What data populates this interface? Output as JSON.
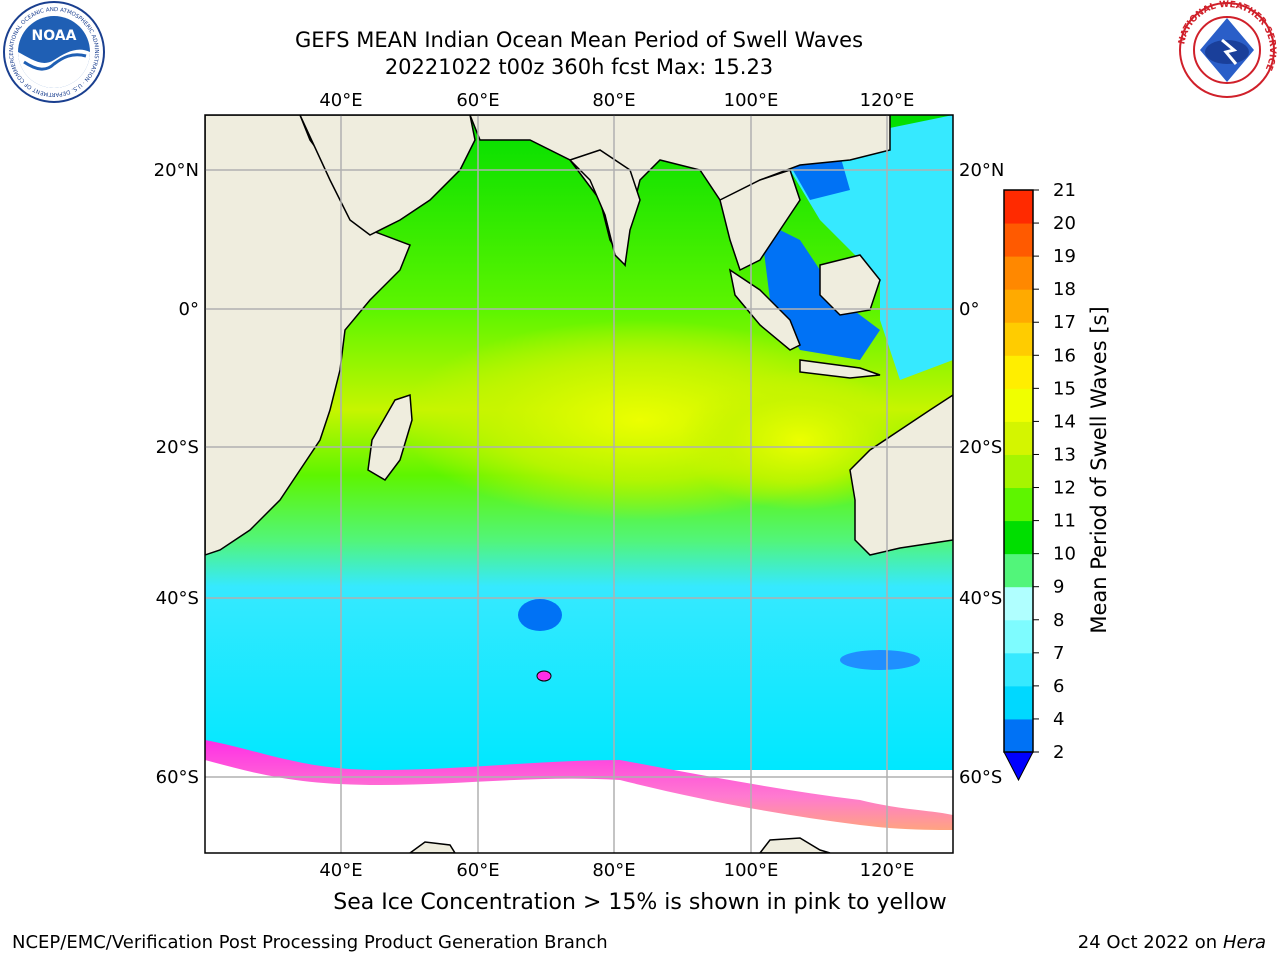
{
  "title": {
    "line1": "GEFS MEAN Indian Ocean Mean Period of Swell Waves",
    "line2": "20221022 t00z 360h fcst   Max: 15.23"
  },
  "map": {
    "lon_ticks": [
      "40°E",
      "60°E",
      "80°E",
      "100°E",
      "120°E"
    ],
    "lat_ticks": [
      "20°N",
      "0°",
      "20°S",
      "40°S",
      "60°S"
    ],
    "lon_range": [
      20,
      130
    ],
    "lat_range": [
      -68,
      28
    ],
    "colors": {
      "land": "#efedde",
      "ice_region": "#ffffff",
      "grid": "#b0b0b0"
    }
  },
  "colorbar": {
    "label": "Mean Period of Swell Waves [s]",
    "ticks": [
      "2",
      "4",
      "6",
      "7",
      "8",
      "9",
      "10",
      "11",
      "12",
      "13",
      "14",
      "15",
      "16",
      "17",
      "18",
      "19",
      "20",
      "21"
    ],
    "colors": [
      "#0072f5",
      "#00d8ff",
      "#36e9ff",
      "#7efcff",
      "#b0ffff",
      "#52f57a",
      "#00de00",
      "#5ef500",
      "#a6f500",
      "#d4f500",
      "#f0ff00",
      "#ffee00",
      "#ffcc00",
      "#ffaa00",
      "#ff8800",
      "#ff5a00",
      "#ff2a00",
      "#ff0000"
    ],
    "extend_color": "#0000ff"
  },
  "footer": {
    "ice_note": "Sea Ice Concentration > 15% is shown in pink to yellow",
    "credit": "NCEP/EMC/Verification Post Processing Product Generation Branch",
    "date": "24 Oct 2022 on",
    "machine": "Hera"
  },
  "logos": {
    "noaa": "NOAA",
    "noaa_ring": "NATIONAL OCEANIC AND ATMOSPHERIC ADMINISTRATION · U.S. DEPARTMENT OF COMMERCE",
    "nws_ring": "NATIONAL WEATHER SERVICE"
  }
}
